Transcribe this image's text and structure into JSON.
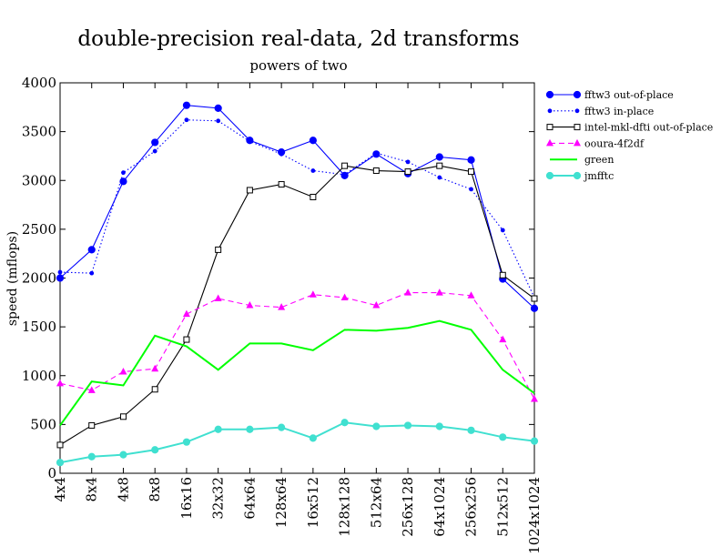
{
  "chart_data": {
    "type": "line",
    "title": "double-precision real-data, 2d transforms",
    "subtitle": "powers of two",
    "xlabel": "",
    "ylabel": "speed (mflops)",
    "ylim": [
      0,
      4000
    ],
    "yticks": [
      "0",
      "500",
      "1000",
      "1500",
      "2000",
      "2500",
      "3000",
      "3500",
      "4000"
    ],
    "grid": false,
    "legend_position": "right",
    "categories": [
      "4x4",
      "8x4",
      "4x8",
      "8x8",
      "16x16",
      "32x32",
      "64x64",
      "128x64",
      "16x512",
      "128x128",
      "512x64",
      "256x128",
      "64x1024",
      "256x256",
      "512x512",
      "1024x1024"
    ],
    "series": [
      {
        "name": "fftw3 out-of-place",
        "color": "#0000ff",
        "dash": "solid",
        "marker": "filled-circle",
        "values": [
          2000,
          2290,
          2990,
          3390,
          3770,
          3740,
          3410,
          3290,
          3410,
          3050,
          3270,
          3070,
          3240,
          3210,
          1990,
          1690
        ]
      },
      {
        "name": "fftw3 in-place",
        "color": "#0000ff",
        "dash": "dotted",
        "marker": "small-dot",
        "values": [
          2060,
          2050,
          3080,
          3300,
          3620,
          3610,
          3400,
          3270,
          3100,
          3060,
          3280,
          3190,
          3030,
          2910,
          2490,
          1800
        ]
      },
      {
        "name": "intel-mkl-dfti out-of-place",
        "color": "#000000",
        "dash": "solid",
        "marker": "open-square",
        "values": [
          290,
          490,
          580,
          860,
          1370,
          2290,
          2900,
          2960,
          2830,
          3150,
          3100,
          3090,
          3150,
          3090,
          2030,
          1790
        ]
      },
      {
        "name": "ooura-4f2df",
        "color": "#ff00ff",
        "dash": "dashed",
        "marker": "triangle",
        "values": [
          920,
          850,
          1040,
          1070,
          1630,
          1790,
          1720,
          1700,
          1830,
          1800,
          1720,
          1850,
          1850,
          1820,
          1370,
          760
        ]
      },
      {
        "name": "green",
        "color": "#00ff00",
        "dash": "solid",
        "marker": "none",
        "values": [
          490,
          940,
          900,
          1410,
          1300,
          1060,
          1330,
          1330,
          1260,
          1470,
          1460,
          1490,
          1560,
          1470,
          1060,
          820
        ]
      },
      {
        "name": "jmfftc",
        "color": "#40e0d0",
        "dash": "solid",
        "marker": "filled-circle",
        "values": [
          110,
          170,
          190,
          240,
          320,
          450,
          450,
          470,
          360,
          520,
          480,
          490,
          480,
          440,
          370,
          330
        ]
      }
    ]
  }
}
